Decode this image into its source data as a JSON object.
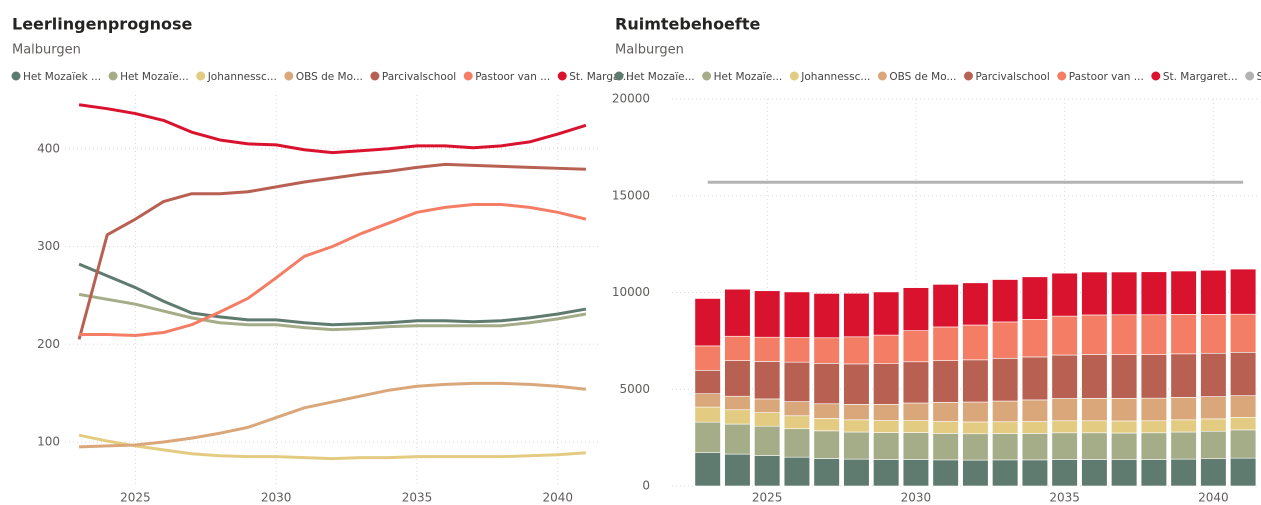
{
  "chart_data": [
    {
      "type": "line",
      "title": "Leerlingenprognose",
      "subtitle": "Malburgen",
      "x": [
        2023,
        2024,
        2025,
        2026,
        2027,
        2028,
        2029,
        2030,
        2031,
        2032,
        2033,
        2034,
        2035,
        2036,
        2037,
        2038,
        2039,
        2040,
        2041
      ],
      "xlim": [
        2022.5,
        2041.5
      ],
      "xticks": [
        2025,
        2030,
        2035,
        2040
      ],
      "ylim": [
        55,
        455
      ],
      "yticks": [
        100,
        200,
        300,
        400
      ],
      "grid": true,
      "series": [
        {
          "name": "Het Mozaïek ...",
          "color": "#5f7a6e",
          "values": [
            282,
            270,
            258,
            244,
            232,
            228,
            225,
            225,
            222,
            220,
            221,
            222,
            224,
            224,
            223,
            224,
            227,
            231,
            236
          ]
        },
        {
          "name": "Het Mozaïe...",
          "color": "#a4ad88",
          "values": [
            251,
            246,
            241,
            234,
            227,
            222,
            220,
            220,
            217,
            215,
            216,
            218,
            219,
            219,
            219,
            219,
            222,
            226,
            231
          ]
        },
        {
          "name": "Johannessc...",
          "color": "#e3cc82",
          "values": [
            107,
            101,
            96,
            92,
            88,
            86,
            85,
            85,
            84,
            83,
            84,
            84,
            85,
            85,
            85,
            85,
            86,
            87,
            89
          ]
        },
        {
          "name": "OBS de Mo...",
          "color": "#d9a77a",
          "values": [
            95,
            96,
            97,
            100,
            104,
            109,
            115,
            125,
            135,
            141,
            147,
            153,
            157,
            159,
            160,
            160,
            159,
            157,
            154
          ]
        },
        {
          "name": "Parcivalschool",
          "color": "#b86153",
          "values": [
            205,
            312,
            328,
            346,
            354,
            354,
            356,
            361,
            366,
            370,
            374,
            377,
            381,
            384,
            383,
            382,
            381,
            380,
            379
          ]
        },
        {
          "name": "Pastoor van ...",
          "color": "#f47e65",
          "values": [
            210,
            210,
            209,
            212,
            220,
            233,
            247,
            268,
            290,
            300,
            313,
            324,
            335,
            340,
            343,
            343,
            340,
            335,
            328
          ]
        },
        {
          "name": "St. Margar...",
          "color": "#d9122e",
          "values": [
            445,
            441,
            436,
            429,
            417,
            409,
            405,
            404,
            399,
            396,
            398,
            400,
            403,
            403,
            401,
            403,
            407,
            415,
            424
          ]
        }
      ]
    },
    {
      "type": "stacked_bar",
      "title": "Ruimtebehoefte",
      "subtitle": "Malburgen",
      "x": [
        2023,
        2024,
        2025,
        2026,
        2027,
        2028,
        2029,
        2030,
        2031,
        2032,
        2033,
        2034,
        2035,
        2036,
        2037,
        2038,
        2039,
        2040,
        2041
      ],
      "xlim": [
        2021.8,
        2041.5
      ],
      "xticks": [
        2025,
        2030,
        2035,
        2040
      ],
      "ylim": [
        0,
        20000
      ],
      "yticks": [
        0,
        5000,
        10000,
        15000,
        20000
      ],
      "grid": true,
      "series": [
        {
          "name": "Het Mozaïe...",
          "color": "#5f7a6e",
          "values": [
            1720,
            1650,
            1570,
            1490,
            1420,
            1390,
            1370,
            1370,
            1350,
            1340,
            1350,
            1350,
            1370,
            1370,
            1360,
            1370,
            1390,
            1410,
            1440
          ]
        },
        {
          "name": "Het Mozaïe...",
          "color": "#a4ad88",
          "values": [
            1580,
            1550,
            1520,
            1470,
            1430,
            1400,
            1390,
            1390,
            1370,
            1360,
            1360,
            1370,
            1380,
            1380,
            1380,
            1380,
            1400,
            1420,
            1460
          ]
        },
        {
          "name": "Johannessc...",
          "color": "#e3cc82",
          "values": [
            780,
            740,
            700,
            670,
            640,
            630,
            620,
            620,
            610,
            610,
            610,
            610,
            620,
            620,
            620,
            620,
            630,
            640,
            650
          ]
        },
        {
          "name": "OBS de Mo...",
          "color": "#d9a77a",
          "values": [
            690,
            700,
            710,
            730,
            760,
            800,
            840,
            910,
            990,
            1030,
            1070,
            1120,
            1150,
            1160,
            1170,
            1170,
            1160,
            1150,
            1120
          ]
        },
        {
          "name": "Parcivalschool",
          "color": "#b86153",
          "values": [
            1210,
            1840,
            1940,
            2040,
            2090,
            2090,
            2100,
            2130,
            2160,
            2180,
            2210,
            2220,
            2250,
            2270,
            2260,
            2250,
            2250,
            2240,
            2240
          ]
        },
        {
          "name": "Pastoor van ...",
          "color": "#f47e65",
          "values": [
            1260,
            1260,
            1250,
            1270,
            1320,
            1400,
            1480,
            1610,
            1740,
            1800,
            1880,
            1940,
            2010,
            2040,
            2060,
            2060,
            2040,
            2010,
            1970
          ]
        },
        {
          "name": "St. Margaret...",
          "color": "#d9122e",
          "values": [
            2450,
            2430,
            2400,
            2360,
            2290,
            2250,
            2230,
            2220,
            2200,
            2180,
            2190,
            2200,
            2220,
            2220,
            2210,
            2220,
            2240,
            2280,
            2330
          ]
        },
        {
          "name": "Som van bvo",
          "color": "#b3b3b3",
          "type": "line",
          "values": [
            15700,
            15700,
            15700,
            15700,
            15700,
            15700,
            15700,
            15700,
            15700,
            15700,
            15700,
            15700,
            15700,
            15700,
            15700,
            15700,
            15700,
            15700,
            15700
          ]
        }
      ]
    }
  ]
}
